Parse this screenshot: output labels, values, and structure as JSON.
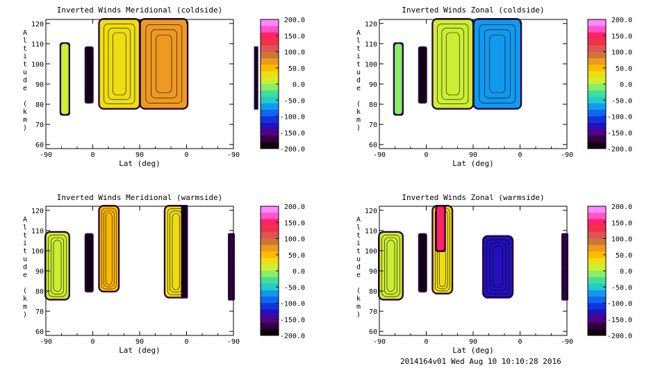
{
  "footer": "2014164v01 Wed Aug 10 10:10:28 2016",
  "colorbar": {
    "ticks": [
      "200.0",
      "150.0",
      "100.0",
      "50.0",
      "0.0",
      "-50.0",
      "-100.0",
      "-150.0",
      "-200.0"
    ],
    "colors": [
      "#ff88ff",
      "#ff55cc",
      "#ff2266",
      "#ee3344",
      "#dd5555",
      "#cc7733",
      "#ee9922",
      "#ffbb00",
      "#eedd11",
      "#ccee33",
      "#88ee66",
      "#44dd99",
      "#22cccc",
      "#1199ee",
      "#1166ee",
      "#1133dd",
      "#2211bb",
      "#550088",
      "#330044",
      "#110011"
    ]
  },
  "chart_data": [
    {
      "type": "contour",
      "title": "Inverted Winds Meridional (coldside)",
      "xlabel": "Lat (deg)",
      "ylabel": "Altitude (km)",
      "xticks": [
        "-90",
        "0",
        "90",
        "0",
        "-90"
      ],
      "yticks": [
        "60",
        "70",
        "80",
        "90",
        "100",
        "110",
        "120"
      ],
      "ylim": [
        58,
        122
      ],
      "regions": [
        {
          "x": [
            -61,
            -46
          ],
          "y": [
            75,
            110
          ],
          "value": 20
        },
        {
          "x": [
            -13,
            -1
          ],
          "y": [
            81,
            108
          ],
          "value": -180
        },
        {
          "x": [
            13,
            89
          ],
          "y": [
            78,
            122
          ],
          "value": 40
        },
        {
          "x": [
            92,
            181
          ],
          "y": [
            78,
            122
          ],
          "value": 70
        },
        {
          "x": [
            312,
            315
          ],
          "y": [
            78,
            108
          ],
          "value": -200
        }
      ]
    },
    {
      "type": "contour",
      "title": "Inverted Winds Zonal (coldside)",
      "xlabel": "Lat (deg)",
      "ylabel": "Altitude (km)",
      "xticks": [
        "-90",
        "0",
        "90",
        "0",
        "-90"
      ],
      "yticks": [
        "60",
        "70",
        "80",
        "90",
        "100",
        "110",
        "120"
      ],
      "ylim": [
        58,
        122
      ],
      "regions": [
        {
          "x": [
            -61,
            -46
          ],
          "y": [
            75,
            110
          ],
          "value": 0
        },
        {
          "x": [
            -13,
            -1
          ],
          "y": [
            81,
            108
          ],
          "value": -180
        },
        {
          "x": [
            13,
            89
          ],
          "y": [
            78,
            122
          ],
          "value": 10
        },
        {
          "x": [
            92,
            181
          ],
          "y": [
            78,
            122
          ],
          "value": -60
        },
        {
          "x": [
            312,
            315
          ],
          "y": [
            78,
            108
          ],
          "value": -200
        }
      ]
    },
    {
      "type": "contour",
      "title": "Inverted Winds Meridional (warmside)",
      "xlabel": "Lat (deg)",
      "ylabel": "Altitude (km)",
      "xticks": [
        "-90",
        "0",
        "90",
        "0",
        "-90"
      ],
      "yticks": [
        "60",
        "70",
        "80",
        "90",
        "100",
        "110",
        "120"
      ],
      "ylim": [
        58,
        122
      ],
      "regions": [
        {
          "x": [
            -90,
            -46
          ],
          "y": [
            76,
            109
          ],
          "value": 10
        },
        {
          "x": [
            -13,
            -1
          ],
          "y": [
            80,
            108
          ],
          "value": -180
        },
        {
          "x": [
            13,
            49
          ],
          "y": [
            80,
            122
          ],
          "value": 60
        },
        {
          "x": [
            139,
            180
          ],
          "y": [
            77,
            122
          ],
          "value": 40
        },
        {
          "x": [
            172,
            180
          ],
          "y": [
            77,
            122
          ],
          "value": -200
        },
        {
          "x": [
            262,
            270
          ],
          "y": [
            76,
            108
          ],
          "value": -170
        }
      ]
    },
    {
      "type": "contour",
      "title": "Inverted Winds Zonal (warmside)",
      "xlabel": "Lat (deg)",
      "ylabel": "Altitude (km)",
      "xticks": [
        "-90",
        "0",
        "90",
        "0",
        "-90"
      ],
      "yticks": [
        "60",
        "70",
        "80",
        "90",
        "100",
        "110",
        "120"
      ],
      "ylim": [
        58,
        122
      ],
      "regions": [
        {
          "x": [
            -90,
            -46
          ],
          "y": [
            76,
            109
          ],
          "value": 10
        },
        {
          "x": [
            -13,
            -1
          ],
          "y": [
            80,
            108
          ],
          "value": -180
        },
        {
          "x": [
            13,
            49
          ],
          "y": [
            79,
            122
          ],
          "value": 40
        },
        {
          "x": [
            20,
            35
          ],
          "y": [
            100,
            122
          ],
          "value": 160
        },
        {
          "x": [
            110,
            165
          ],
          "y": [
            77,
            107
          ],
          "value": -120
        },
        {
          "x": [
            262,
            270
          ],
          "y": [
            76,
            108
          ],
          "value": -170
        }
      ]
    }
  ]
}
